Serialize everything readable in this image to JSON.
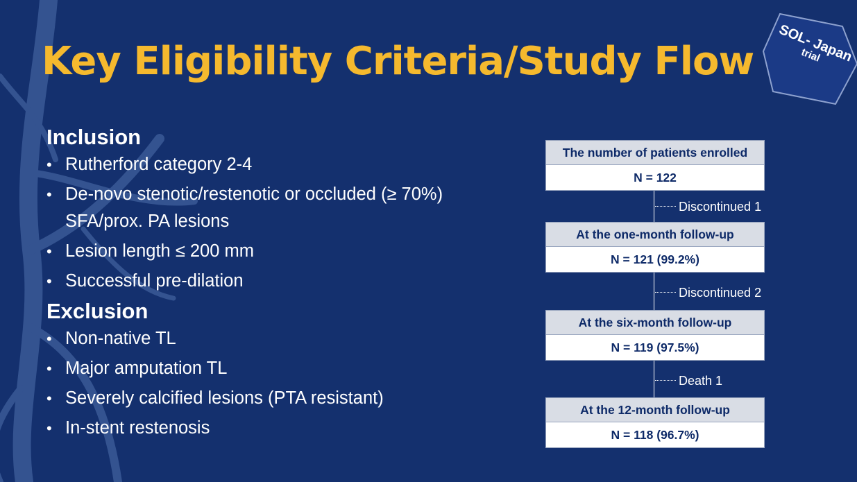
{
  "slide": {
    "title": "Key Eligibility Criteria/Study Flow",
    "badge": {
      "line1": "SOL- Japan",
      "line2": "trial"
    }
  },
  "inclusion": {
    "heading": "Inclusion",
    "items": [
      "Rutherford category 2-4",
      "De-novo stenotic/restenotic  or occluded (≥ 70%) SFA/prox. PA lesions",
      "Lesion length ≤ 200 mm",
      "Successful pre-dilation"
    ]
  },
  "exclusion": {
    "heading": "Exclusion",
    "items": [
      "Non-native TL",
      "Major amputation TL",
      "Severely calcified lesions (PTA resistant)",
      "In-stent restenosis"
    ]
  },
  "flow": {
    "stages": [
      {
        "label": "The number of patients enrolled",
        "value": "N = 122"
      },
      {
        "label": "At the one-month follow-up",
        "value": "N = 121 (99.2%)"
      },
      {
        "label": "At the six-month follow-up",
        "value": "N = 119 (97.5%)"
      },
      {
        "label": "At the 12-month follow-up",
        "value": "N = 118 (96.7%)"
      }
    ],
    "transitions": [
      "Discontinued  1",
      "Discontinued 2",
      "Death 1"
    ]
  },
  "colors": {
    "background": "#14306e",
    "title": "#f5b92e",
    "box_header": "#d9dde5",
    "box_text": "#0e2a68"
  }
}
